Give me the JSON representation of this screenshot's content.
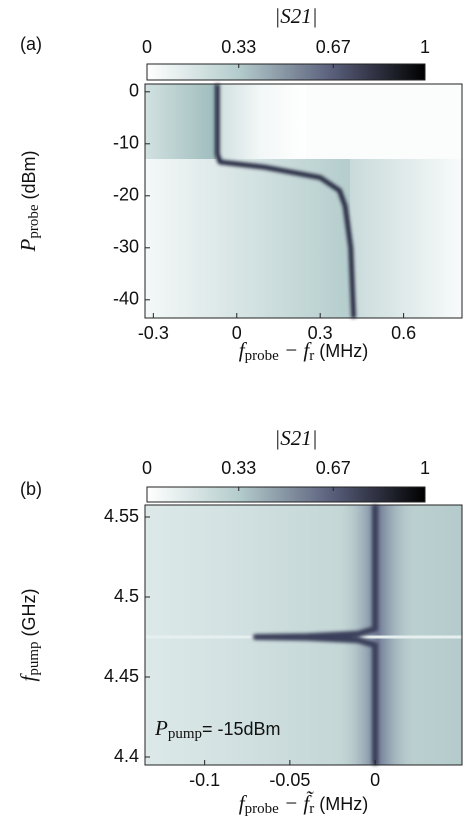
{
  "chart_data": [
    {
      "type": "heatmap",
      "panel": "(a)",
      "colorbar_label": "|S21|",
      "colorbar_lim": [
        0,
        1
      ],
      "colorbar_ticks": [
        0,
        0.33,
        0.67,
        1
      ],
      "xlabel": {
        "symbol": "f",
        "sub": "probe",
        "minus": " − f",
        "sub2": "r",
        "unit": " (MHz)"
      },
      "ylabel": {
        "symbol": "P",
        "sub": "probe",
        "unit": " (dBm)"
      },
      "xlim": [
        -0.33,
        0.81
      ],
      "ylim": [
        -43.5,
        1.5
      ],
      "xticks": [
        -0.3,
        0,
        0.3,
        0.6
      ],
      "yticks": [
        0,
        -10,
        -20,
        -30,
        -40
      ],
      "color": "#2a2f45",
      "x": [
        -0.07,
        -0.07,
        -0.07,
        -0.06,
        0.1,
        0.3,
        0.37,
        0.39,
        0.41,
        0.42
      ],
      "values": [
        1.5,
        -5,
        -12,
        -13.5,
        -14.5,
        -16.5,
        -19,
        -22,
        -30,
        -43.5
      ]
    },
    {
      "type": "heatmap",
      "panel": "(b)",
      "colorbar_label": "|S21|",
      "colorbar_lim": [
        0,
        1
      ],
      "colorbar_ticks": [
        0,
        0.33,
        0.67,
        1
      ],
      "xlabel": {
        "symbol": "f",
        "sub": "probe",
        "minus": " − f̃",
        "sub2": "r",
        "unit": " (MHz)"
      },
      "ylabel": {
        "symbol": "f",
        "sub": "pump",
        "unit": " (GHz)"
      },
      "annotation": {
        "symbol": "P",
        "sub": "pump",
        "text": "= -15dBm"
      },
      "xlim": [
        -0.135,
        0.051
      ],
      "ylim": [
        4.395,
        4.5575
      ],
      "xticks": [
        -0.1,
        -0.05,
        0
      ],
      "yticks": [
        4.55,
        4.5,
        4.45,
        4.4
      ],
      "color": "#3a3f5a",
      "x": [
        0,
        0,
        -0.01,
        -0.04,
        -0.07,
        -0.04,
        -0.01,
        0,
        0
      ],
      "values": [
        4.5575,
        4.48,
        4.477,
        4.4755,
        4.475,
        4.4745,
        4.473,
        4.47,
        4.395
      ]
    }
  ]
}
